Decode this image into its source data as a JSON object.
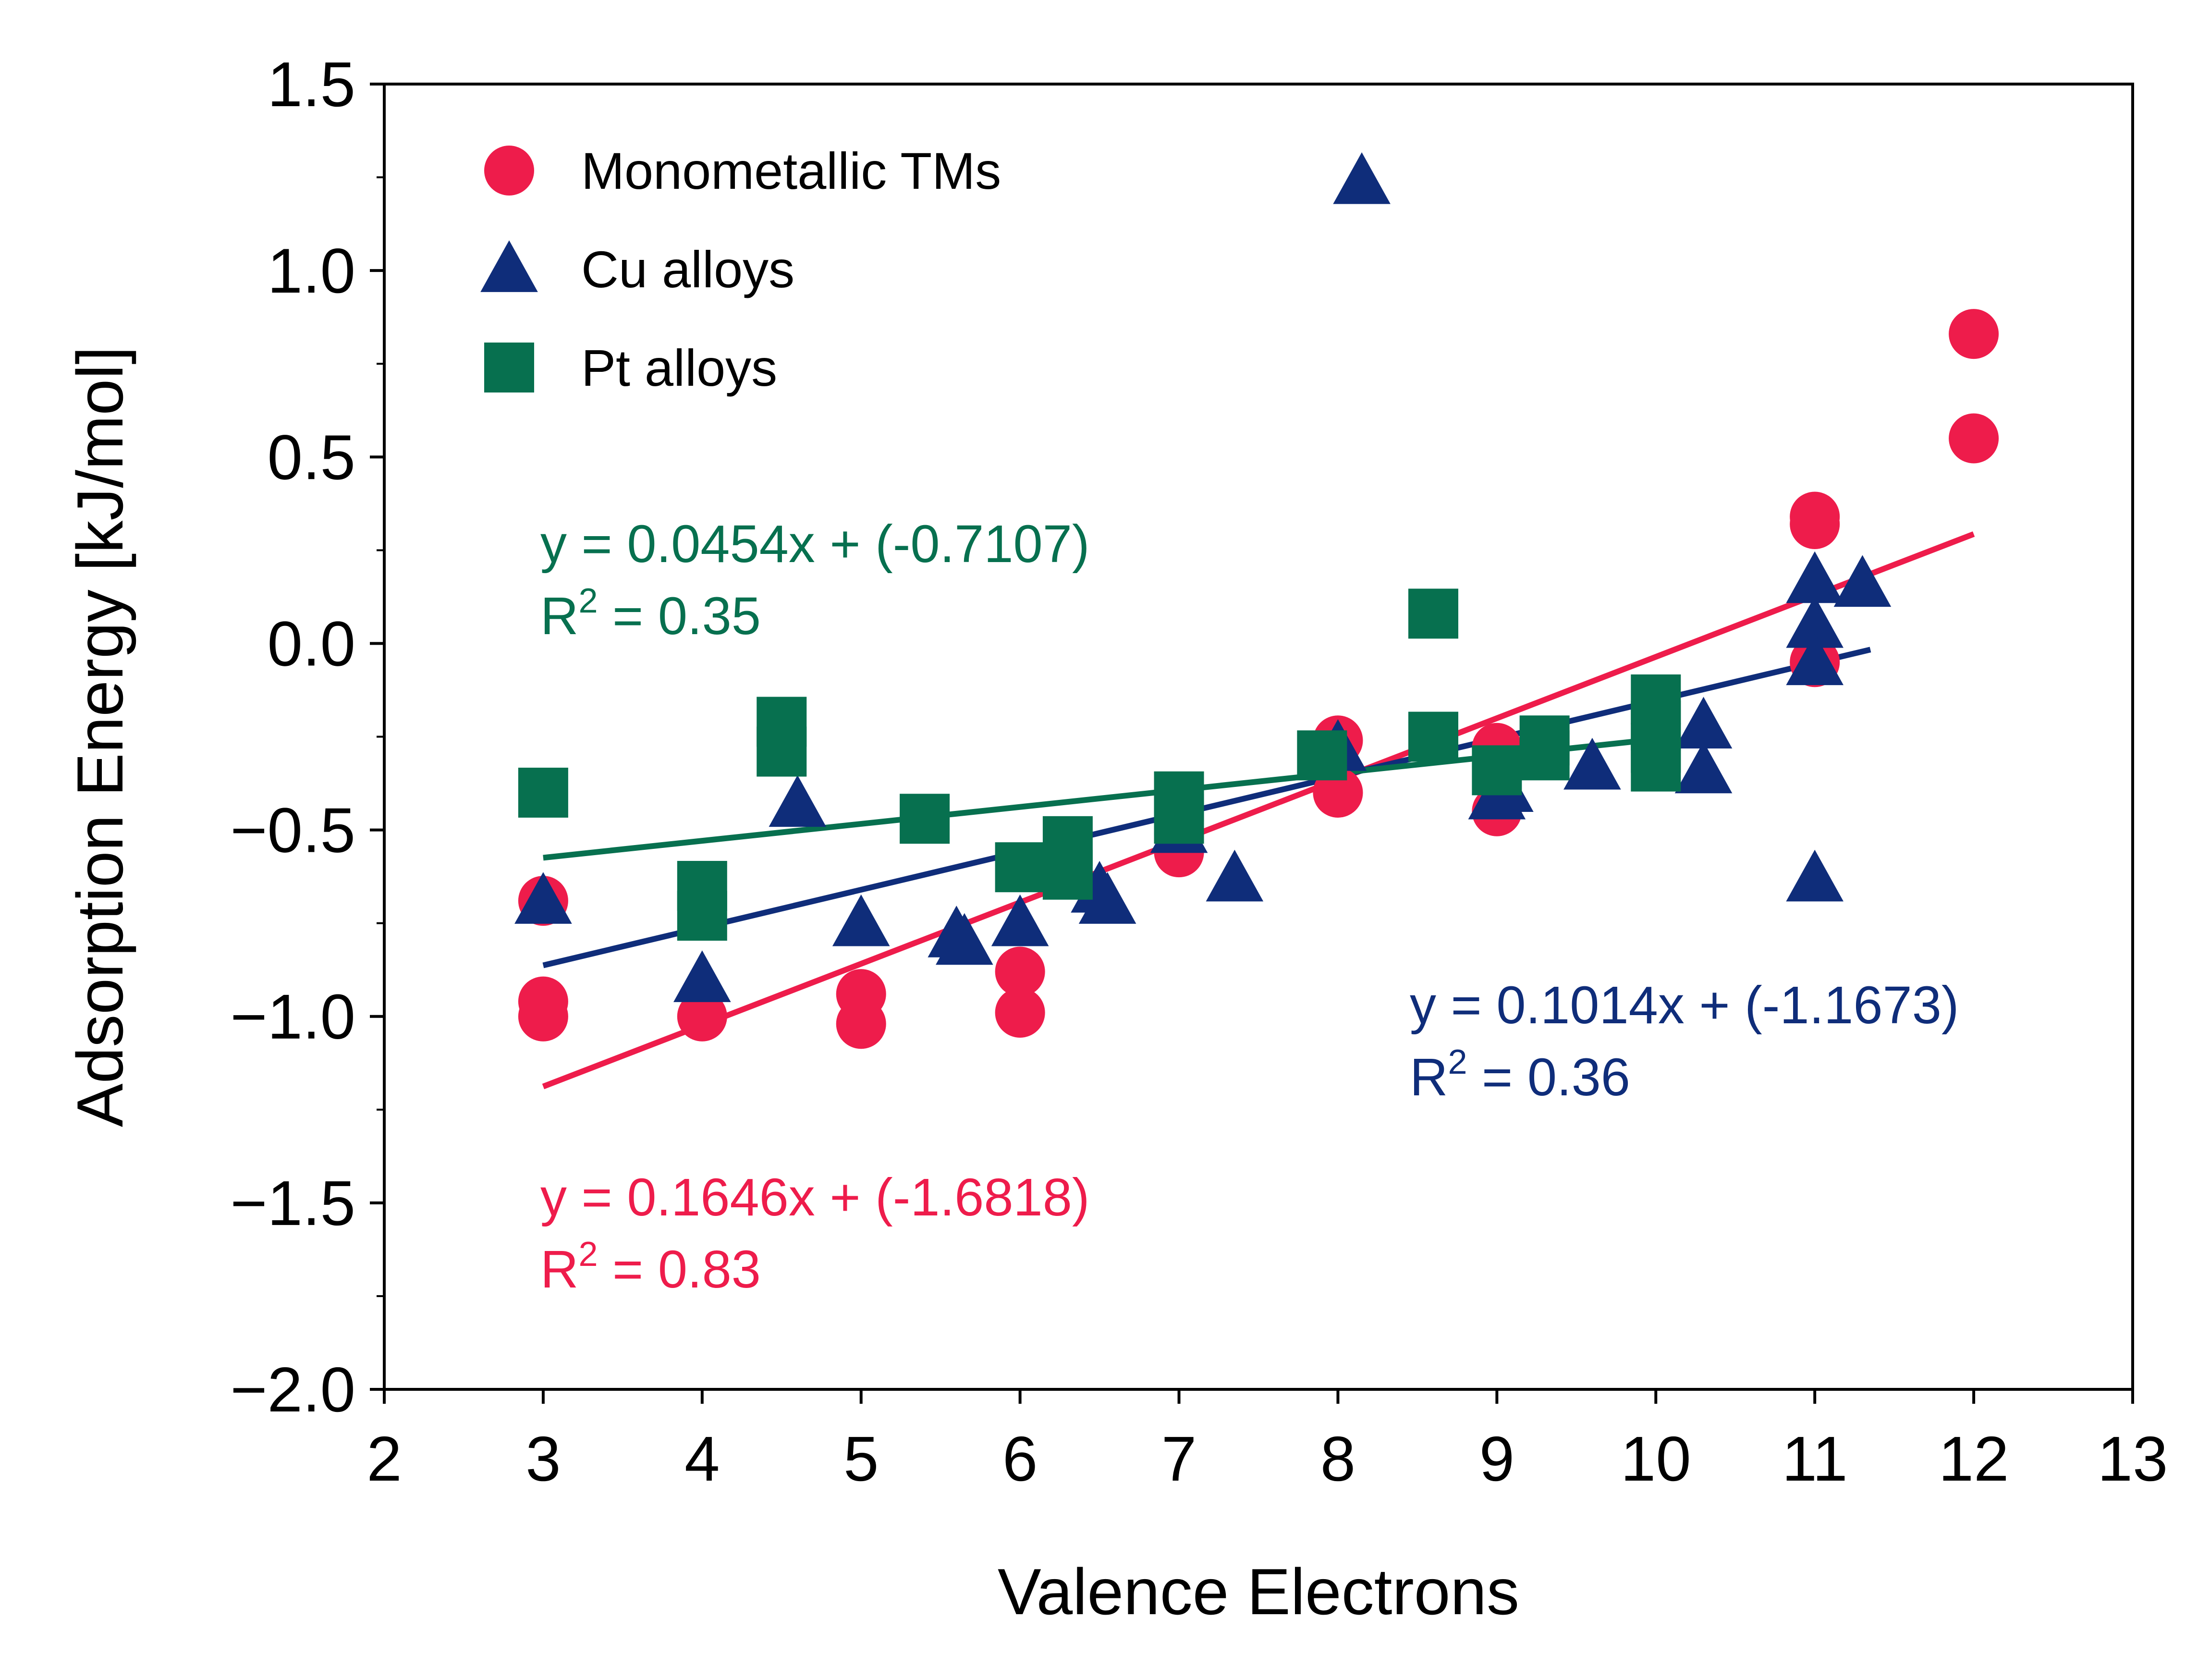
{
  "chart_data": {
    "type": "scatter",
    "xlabel": "Valence Electrons",
    "ylabel": "Adsorption Energy [kJ/mol]",
    "xlim": [
      2,
      13
    ],
    "ylim": [
      -2.0,
      1.5
    ],
    "xticks": [
      "2",
      "3",
      "4",
      "5",
      "6",
      "7",
      "8",
      "9",
      "10",
      "11",
      "12",
      "13"
    ],
    "yticks": [
      "1.5",
      "1.0",
      "0.5",
      "0.0",
      "−0.5",
      "−1.0",
      "−1.5",
      "−2.0"
    ],
    "ytick_values": [
      1.5,
      1.0,
      0.5,
      0.0,
      -0.5,
      -1.0,
      -1.5,
      -2.0
    ],
    "legend_position": "top-left",
    "grid": false,
    "series": [
      {
        "name": "Monometallic TMs",
        "marker": "circle",
        "color": "#EE1C4B",
        "points": [
          [
            3,
            -0.69
          ],
          [
            3,
            -0.96
          ],
          [
            3,
            -1.0
          ],
          [
            4,
            -1.0
          ],
          [
            5,
            -0.94
          ],
          [
            5,
            -1.02
          ],
          [
            6,
            -0.88
          ],
          [
            6,
            -0.99
          ],
          [
            7,
            -0.51
          ],
          [
            7,
            -0.56
          ],
          [
            8,
            -0.26
          ],
          [
            8,
            -0.4
          ],
          [
            9,
            -0.28
          ],
          [
            9,
            -0.45
          ],
          [
            11,
            0.34
          ],
          [
            11,
            0.32
          ],
          [
            11,
            -0.05
          ],
          [
            12,
            0.83
          ],
          [
            12,
            0.55
          ]
        ],
        "fit": {
          "slope": 0.1646,
          "intercept": -1.6818,
          "x_range": [
            3,
            12
          ],
          "equation": "y = 0.1646x + (-1.6818)",
          "r2_prefix": "R",
          "r2_sup": "2",
          "r2_suffix": " = 0.83"
        }
      },
      {
        "name": "Cu alloys",
        "marker": "triangle",
        "color": "#0F2D7A",
        "points": [
          [
            3,
            -0.69
          ],
          [
            4,
            -0.9
          ],
          [
            4.6,
            -0.43
          ],
          [
            5,
            -0.75
          ],
          [
            5.6,
            -0.78
          ],
          [
            5.65,
            -0.8
          ],
          [
            6,
            -0.75
          ],
          [
            6.5,
            -0.66
          ],
          [
            6.55,
            -0.69
          ],
          [
            7,
            -0.5
          ],
          [
            7.35,
            -0.63
          ],
          [
            8,
            -0.28
          ],
          [
            8.15,
            1.24
          ],
          [
            9,
            -0.41
          ],
          [
            9.05,
            -0.39
          ],
          [
            9.6,
            -0.33
          ],
          [
            10.3,
            -0.22
          ],
          [
            10.3,
            -0.34
          ],
          [
            11,
            0.17
          ],
          [
            11,
            0.05
          ],
          [
            11,
            -0.05
          ],
          [
            11,
            -0.63
          ],
          [
            11.3,
            0.16
          ]
        ],
        "fit": {
          "slope": 0.1014,
          "intercept": -1.1673,
          "x_range": [
            3,
            11.35
          ],
          "equation": "y = 0.1014x + (-1.1673)",
          "r2_prefix": "R",
          "r2_sup": "2",
          "r2_suffix": " = 0.36"
        }
      },
      {
        "name": "Pt alloys",
        "marker": "square",
        "color": "#07704F",
        "points": [
          [
            3,
            -0.4
          ],
          [
            4,
            -0.65
          ],
          [
            4,
            -0.73
          ],
          [
            4.5,
            -0.21
          ],
          [
            4.5,
            -0.29
          ],
          [
            5.4,
            -0.47
          ],
          [
            6,
            -0.6
          ],
          [
            6.3,
            -0.53
          ],
          [
            6.3,
            -0.62
          ],
          [
            7,
            -0.41
          ],
          [
            7,
            -0.47
          ],
          [
            7.9,
            -0.3
          ],
          [
            8.6,
            0.08
          ],
          [
            8.6,
            -0.25
          ],
          [
            9,
            -0.34
          ],
          [
            9.3,
            -0.26
          ],
          [
            9.3,
            -0.3
          ],
          [
            10,
            -0.15
          ],
          [
            10,
            -0.22
          ],
          [
            10,
            -0.28
          ],
          [
            10,
            -0.33
          ]
        ],
        "fit": {
          "slope": 0.0454,
          "intercept": -0.7107,
          "x_range": [
            3,
            10
          ],
          "equation": "y = 0.0454x + (-0.7107)",
          "r2_prefix": "R",
          "r2_sup": "2",
          "r2_suffix": " = 0.35"
        }
      }
    ]
  }
}
